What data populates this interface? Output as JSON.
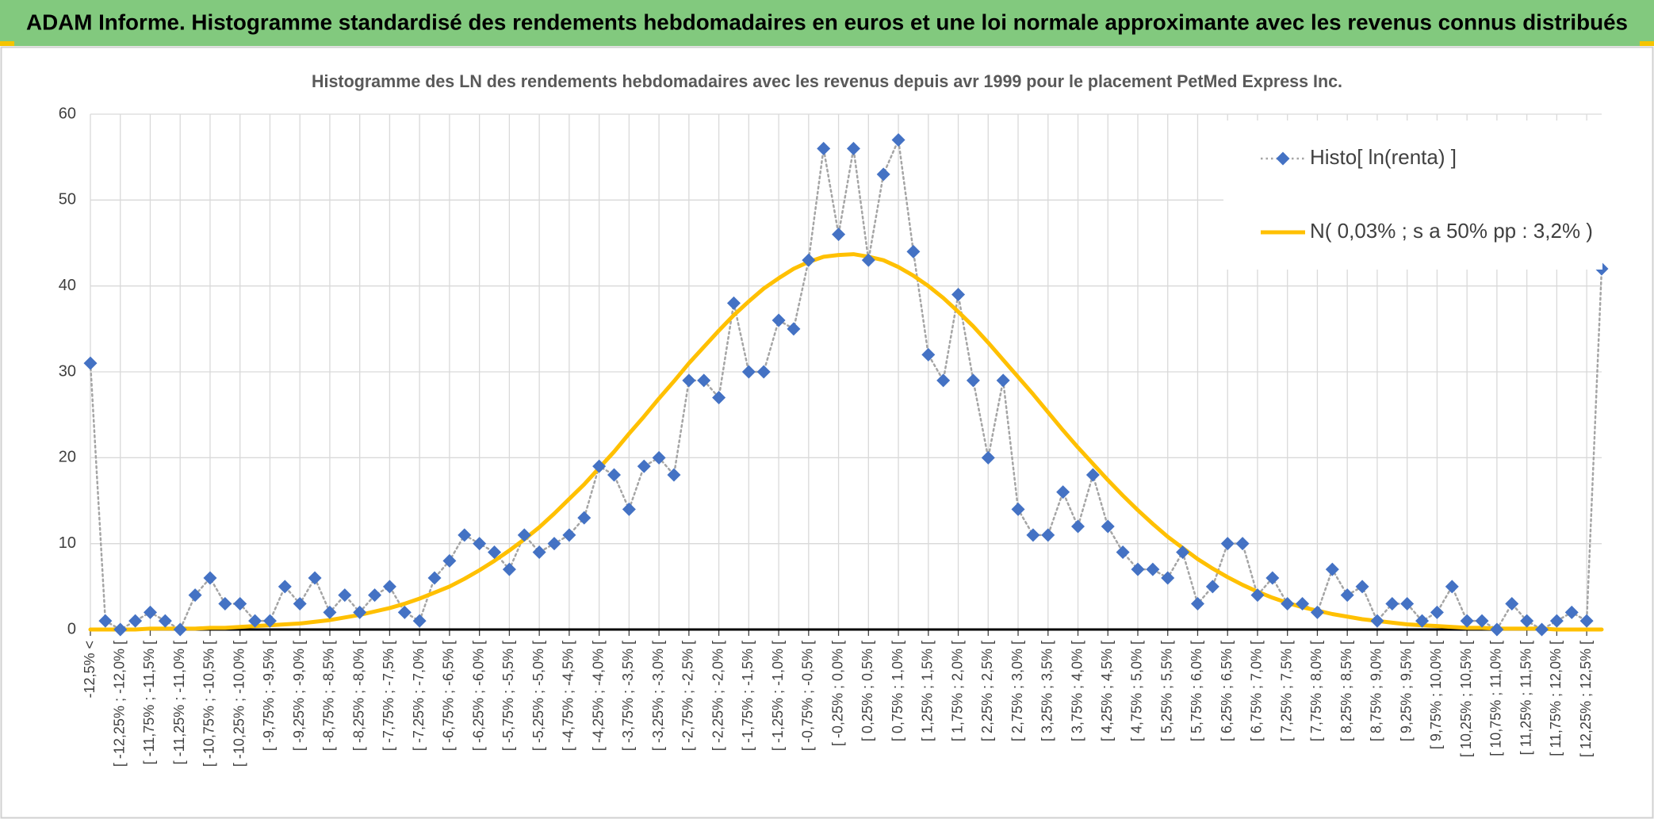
{
  "chart_data": {
    "type": "line",
    "header": "ADAM Informe. Histogramme standardisé des rendements hebdomadaires en euros et une loi normale approximante avec les revenus connus distribués",
    "title": "Histogramme des LN des rendements hebdomadaires avec les revenus depuis avr 1999 pour le placement PetMed Express Inc.",
    "categories": [
      "-12,5% <",
      null,
      "[ -12,25% ; -12,0% [",
      null,
      "[ -11,75% ; -11,5% [",
      null,
      "[ -11,25% ; -11,0% [",
      null,
      "[ -10,75% ; -10,5% [",
      null,
      "[ -10,25% ; -10,0% [",
      null,
      "[ -9,75% ; -9,5% [",
      null,
      "[ -9,25% ; -9,0% [",
      null,
      "[ -8,75% ; -8,5% [",
      null,
      "[ -8,25% ; -8,0% [",
      null,
      "[ -7,75% ; -7,5% [",
      null,
      "[ -7,25% ; -7,0% [",
      null,
      "[ -6,75% ; -6,5% [",
      null,
      "[ -6,25% ; -6,0% [",
      null,
      "[ -5,75% ; -5,5% [",
      null,
      "[ -5,25% ; -5,0% [",
      null,
      "[ -4,75% ; -4,5% [",
      null,
      "[ -4,25% ; -4,0% [",
      null,
      "[ -3,75% ; -3,5% [",
      null,
      "[ -3,25% ; -3,0% [",
      null,
      "[ -2,75% ; -2,5% [",
      null,
      "[ -2,25% ; -2,0% [",
      null,
      "[ -1,75% ; -1,5% [",
      null,
      "[ -1,25% ; -1,0% [",
      null,
      "[ -0,75% ; -0,5% [",
      null,
      "[ -0,25% ; 0,0% [",
      null,
      "[ 0,25% ; 0,5% [",
      null,
      "[ 0,75% ; 1,0% [",
      null,
      "[ 1,25% ; 1,5% [",
      null,
      "[ 1,75% ; 2,0% [",
      null,
      "[ 2,25% ; 2,5% [",
      null,
      "[ 2,75% ; 3,0% [",
      null,
      "[ 3,25% ; 3,5% [",
      null,
      "[ 3,75% ; 4,0% [",
      null,
      "[ 4,25% ; 4,5% [",
      null,
      "[ 4,75% ; 5,0% [",
      null,
      "[ 5,25% ; 5,5% [",
      null,
      "[ 5,75% ; 6,0% [",
      null,
      "[ 6,25% ; 6,5% [",
      null,
      "[ 6,75% ; 7,0% [",
      null,
      "[ 7,25% ; 7,5% [",
      null,
      "[ 7,75% ; 8,0% [",
      null,
      "[ 8,25% ; 8,5% [",
      null,
      "[ 8,75% ; 9,0% [",
      null,
      "[ 9,25% ; 9,5% [",
      null,
      "[ 9,75% ; 10,0% [",
      null,
      "[ 10,25% ; 10,5% [",
      null,
      "[ 10,75% ; 11,0% [",
      null,
      "[ 11,25% ; 11,5% [",
      null,
      "[ 11,75% ; 12,0% [",
      null,
      "[ 12,25% ; 12,5% [",
      null
    ],
    "series": [
      {
        "name": "Histo[ ln(renta) ]",
        "color": "#4472c4",
        "line_color": "#a5a5a5",
        "marker": "diamond",
        "line_style": "dotted",
        "values": [
          31,
          1,
          0,
          1,
          2,
          1,
          0,
          4,
          6,
          3,
          3,
          1,
          1,
          5,
          3,
          6,
          2,
          4,
          2,
          4,
          5,
          2,
          1,
          6,
          8,
          11,
          10,
          9,
          7,
          11,
          9,
          10,
          11,
          13,
          19,
          18,
          14,
          19,
          20,
          18,
          29,
          29,
          27,
          38,
          30,
          30,
          36,
          35,
          43,
          56,
          46,
          56,
          43,
          53,
          57,
          44,
          32,
          29,
          39,
          29,
          20,
          29,
          14,
          11,
          11,
          16,
          12,
          18,
          12,
          9,
          7,
          7,
          6,
          9,
          3,
          5,
          10,
          10,
          4,
          6,
          3,
          3,
          2,
          7,
          4,
          5,
          1,
          3,
          3,
          1,
          2,
          5,
          1,
          1,
          0,
          3,
          1,
          0,
          1,
          2,
          1,
          42
        ]
      },
      {
        "name": "N( 0,03% ; s a 50% pp : 3,2% )",
        "color": "#ffc000",
        "line_style": "solid",
        "values": [
          0,
          0,
          0,
          0,
          0.1,
          0.1,
          0.1,
          0.1,
          0.2,
          0.2,
          0.3,
          0.4,
          0.5,
          0.6,
          0.7,
          0.9,
          1.1,
          1.4,
          1.7,
          2.1,
          2.5,
          3.0,
          3.6,
          4.3,
          5.0,
          5.9,
          6.9,
          8.0,
          9.2,
          10.5,
          11.9,
          13.5,
          15.2,
          16.9,
          18.8,
          20.7,
          22.8,
          24.8,
          26.9,
          28.9,
          31.0,
          32.9,
          34.8,
          36.6,
          38.2,
          39.7,
          40.9,
          42.0,
          42.8,
          43.4,
          43.6,
          43.7,
          43.4,
          43.0,
          42.2,
          41.2,
          40.0,
          38.6,
          37.0,
          35.3,
          33.4,
          31.4,
          29.4,
          27.4,
          25.3,
          23.2,
          21.2,
          19.3,
          17.4,
          15.6,
          13.9,
          12.3,
          10.8,
          9.5,
          8.2,
          7.1,
          6.1,
          5.2,
          4.4,
          3.7,
          3.1,
          2.6,
          2.2,
          1.8,
          1.5,
          1.2,
          1.0,
          0.8,
          0.6,
          0.5,
          0.4,
          0.3,
          0.2,
          0.2,
          0.1,
          0.1,
          0.1,
          0.1,
          0,
          0,
          0,
          0
        ]
      }
    ],
    "ylim": [
      0,
      60
    ],
    "yticks": [
      0,
      10,
      20,
      30,
      40,
      50,
      60
    ],
    "grid": true,
    "legend": "top-right"
  }
}
